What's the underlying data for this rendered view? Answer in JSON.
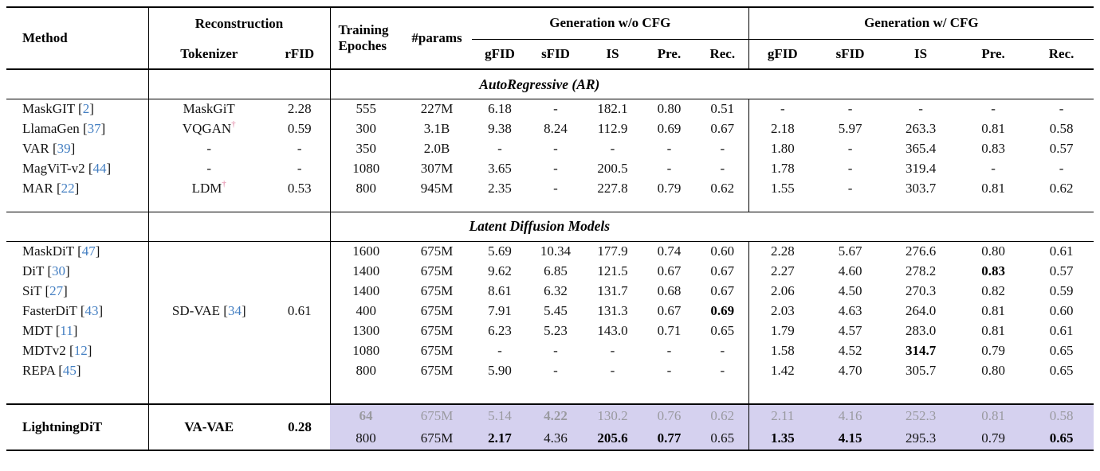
{
  "colors": {
    "citation": "#447fc2",
    "dagger": "#e07e9f",
    "highlight": "#d5d1ef",
    "dim_text": "#9a9aa0",
    "rule": "#000000"
  },
  "header": {
    "method": "Method",
    "reconstruction": "Reconstruction",
    "tokenizer": "Tokenizer",
    "rfid": "rFID",
    "training_epochs_line1": "Training",
    "training_epochs_line2": "Epoches",
    "params": "#params",
    "gen_wo_cfg": "Generation w/o CFG",
    "gen_w_cfg": "Generation w/ CFG",
    "metrics": [
      "gFID",
      "sFID",
      "IS",
      "Pre.",
      "Rec."
    ]
  },
  "sections": [
    {
      "label": "AutoRegressive (AR)",
      "rows": [
        {
          "method": "MaskGIT",
          "cite": "2",
          "tokenizer": "MaskGiT",
          "dagger": false,
          "rfid": "2.28",
          "epochs": "555",
          "params": "227M",
          "wo": [
            "6.18",
            "-",
            "182.1",
            "0.80",
            "0.51"
          ],
          "w": [
            "-",
            "-",
            "-",
            "-",
            "-"
          ]
        },
        {
          "method": "LlamaGen",
          "cite": "37",
          "tokenizer": "VQGAN",
          "dagger": true,
          "rfid": "0.59",
          "epochs": "300",
          "params": "3.1B",
          "wo": [
            "9.38",
            "8.24",
            "112.9",
            "0.69",
            "0.67"
          ],
          "w": [
            "2.18",
            "5.97",
            "263.3",
            "0.81",
            "0.58"
          ]
        },
        {
          "method": "VAR",
          "cite": "39",
          "tokenizer": "-",
          "dagger": false,
          "rfid": "-",
          "epochs": "350",
          "params": "2.0B",
          "wo": [
            "-",
            "-",
            "-",
            "-",
            "-"
          ],
          "w": [
            "1.80",
            "-",
            "365.4",
            "0.83",
            "0.57"
          ]
        },
        {
          "method": "MagViT-v2",
          "cite": "44",
          "tokenizer": "-",
          "dagger": false,
          "rfid": "-",
          "epochs": "1080",
          "params": "307M",
          "wo": [
            "3.65",
            "-",
            "200.5",
            "-",
            "-"
          ],
          "w": [
            "1.78",
            "-",
            "319.4",
            "-",
            "-"
          ]
        },
        {
          "method": "MAR",
          "cite": "22",
          "tokenizer": "LDM",
          "dagger": true,
          "rfid": "0.53",
          "epochs": "800",
          "params": "945M",
          "wo": [
            "2.35",
            "-",
            "227.8",
            "0.79",
            "0.62"
          ],
          "w": [
            "1.55",
            "-",
            "303.7",
            "0.81",
            "0.62"
          ]
        }
      ]
    },
    {
      "label": "Latent Diffusion Models",
      "shared_tokenizer": {
        "name": "SD-VAE",
        "cite": "34",
        "rfid": "0.61"
      },
      "rows": [
        {
          "method": "MaskDiT",
          "cite": "47",
          "epochs": "1600",
          "params": "675M",
          "wo": [
            "5.69",
            "10.34",
            "177.9",
            "0.74",
            "0.60"
          ],
          "w": [
            "2.28",
            "5.67",
            "276.6",
            "0.80",
            "0.61"
          ]
        },
        {
          "method": "DiT",
          "cite": "30",
          "epochs": "1400",
          "params": "675M",
          "wo": [
            "9.62",
            "6.85",
            "121.5",
            "0.67",
            "0.67"
          ],
          "w": [
            "2.27",
            "4.60",
            "278.2",
            {
              "v": "0.83",
              "bold": true
            },
            "0.57"
          ]
        },
        {
          "method": "SiT",
          "cite": "27",
          "epochs": "1400",
          "params": "675M",
          "wo": [
            "8.61",
            "6.32",
            "131.7",
            "0.68",
            "0.67"
          ],
          "w": [
            "2.06",
            "4.50",
            "270.3",
            "0.82",
            "0.59"
          ]
        },
        {
          "method": "FasterDiT",
          "cite": "43",
          "epochs": "400",
          "params": "675M",
          "wo": [
            "7.91",
            "5.45",
            "131.3",
            "0.67",
            {
              "v": "0.69",
              "bold": true
            }
          ],
          "w": [
            "2.03",
            "4.63",
            "264.0",
            "0.81",
            "0.60"
          ]
        },
        {
          "method": "MDT",
          "cite": "11",
          "epochs": "1300",
          "params": "675M",
          "wo": [
            "6.23",
            "5.23",
            "143.0",
            "0.71",
            "0.65"
          ],
          "w": [
            "1.79",
            "4.57",
            "283.0",
            "0.81",
            "0.61"
          ]
        },
        {
          "method": "MDTv2",
          "cite": "12",
          "epochs": "1080",
          "params": "675M",
          "wo": [
            "-",
            "-",
            "-",
            "-",
            "-"
          ],
          "w": [
            "1.58",
            "4.52",
            {
              "v": "314.7",
              "bold": true
            },
            "0.79",
            "0.65"
          ]
        },
        {
          "method": "REPA",
          "cite": "45",
          "epochs": "800",
          "params": "675M",
          "wo": [
            "5.90",
            "-",
            "-",
            "-",
            "-"
          ],
          "w": [
            "1.42",
            "4.70",
            "305.7",
            "0.80",
            "0.65"
          ]
        }
      ]
    }
  ],
  "final_block": {
    "method": "LightningDiT",
    "tokenizer": "VA-VAE",
    "rfid": "0.28",
    "rows": [
      {
        "dim": true,
        "epochs": {
          "v": "64",
          "bold": true
        },
        "params": "675M",
        "wo": [
          "5.14",
          {
            "v": "4.22",
            "bold": true
          },
          "130.2",
          "0.76",
          "0.62"
        ],
        "w": [
          "2.11",
          "4.16",
          "252.3",
          "0.81",
          "0.58"
        ]
      },
      {
        "dim": false,
        "epochs": "800",
        "params": "675M",
        "wo": [
          {
            "v": "2.17",
            "bold": true
          },
          "4.36",
          {
            "v": "205.6",
            "bold": true
          },
          {
            "v": "0.77",
            "bold": true
          },
          "0.65"
        ],
        "w": [
          {
            "v": "1.35",
            "bold": true
          },
          {
            "v": "4.15",
            "bold": true
          },
          "295.3",
          "0.79",
          {
            "v": "0.65",
            "bold": true
          }
        ]
      }
    ]
  }
}
